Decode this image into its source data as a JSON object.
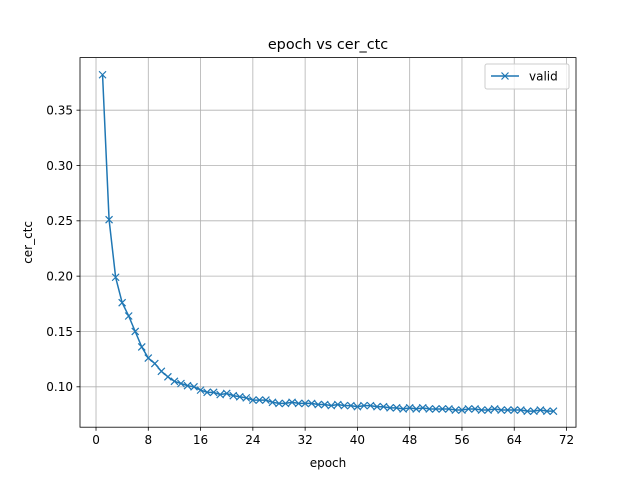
{
  "chart_data": {
    "type": "line",
    "title": "epoch vs cer_ctc",
    "xlabel": "epoch",
    "ylabel": "cer_ctc",
    "xlim": [
      -2.45,
      73.45
    ],
    "ylim": [
      0.0635,
      0.3975
    ],
    "xticks": [
      0,
      8,
      16,
      24,
      32,
      40,
      48,
      56,
      64,
      72
    ],
    "xtick_labels": [
      "0",
      "8",
      "16",
      "24",
      "32",
      "40",
      "48",
      "56",
      "64",
      "72"
    ],
    "yticks": [
      0.1,
      0.15,
      0.2,
      0.25,
      0.3,
      0.35
    ],
    "ytick_labels": [
      "0.10",
      "0.15",
      "0.20",
      "0.25",
      "0.30",
      "0.35"
    ],
    "grid": true,
    "legend": "upper right",
    "marker": "x",
    "series": [
      {
        "name": "valid",
        "color": "#1f77b4",
        "x": [
          1,
          2,
          3,
          4,
          5,
          6,
          7,
          8,
          9,
          10,
          11,
          12,
          13,
          14,
          15,
          16,
          17,
          18,
          19,
          20,
          21,
          22,
          23,
          24,
          25,
          26,
          27,
          28,
          29,
          30,
          31,
          32,
          33,
          34,
          35,
          36,
          37,
          38,
          39,
          40,
          41,
          42,
          43,
          44,
          45,
          46,
          47,
          48,
          49,
          50,
          51,
          52,
          53,
          54,
          55,
          56,
          57,
          58,
          59,
          60,
          61,
          62,
          63,
          64,
          65,
          66,
          67,
          68,
          69,
          70
        ],
        "values": [
          0.382,
          0.251,
          0.199,
          0.176,
          0.164,
          0.15,
          0.136,
          0.126,
          0.121,
          0.114,
          0.109,
          0.105,
          0.103,
          0.101,
          0.1,
          0.097,
          0.095,
          0.095,
          0.093,
          0.094,
          0.092,
          0.091,
          0.09,
          0.088,
          0.088,
          0.088,
          0.086,
          0.085,
          0.085,
          0.086,
          0.085,
          0.085,
          0.085,
          0.084,
          0.084,
          0.083,
          0.084,
          0.083,
          0.083,
          0.082,
          0.083,
          0.083,
          0.082,
          0.082,
          0.081,
          0.081,
          0.08,
          0.081,
          0.08,
          0.081,
          0.08,
          0.08,
          0.08,
          0.08,
          0.079,
          0.079,
          0.08,
          0.08,
          0.079,
          0.079,
          0.08,
          0.079,
          0.079,
          0.079,
          0.079,
          0.078,
          0.078,
          0.079,
          0.078,
          0.078
        ]
      }
    ]
  }
}
